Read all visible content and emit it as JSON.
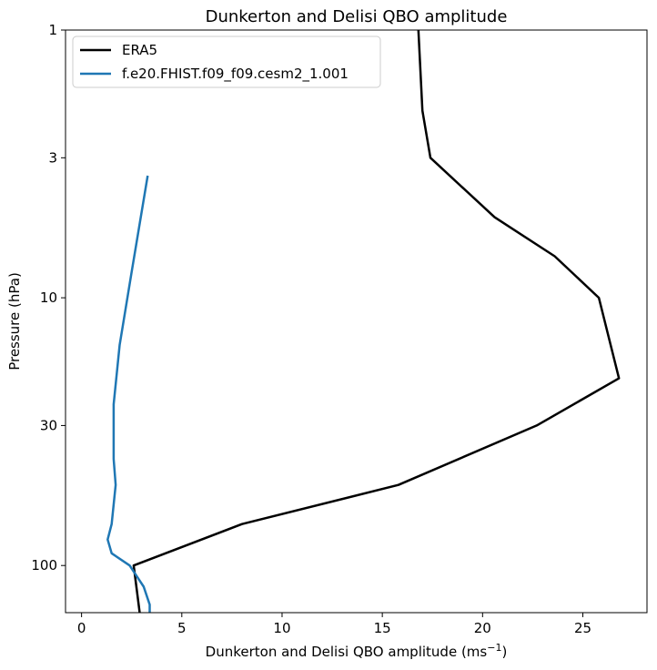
{
  "chart_data": {
    "type": "line",
    "title": "Dunkerton and Delisi QBO amplitude",
    "xlabel": "Dunkerton and Delisi QBO amplitude (ms",
    "xlabel_superscript": "−1",
    "xlabel_suffix": ")",
    "ylabel": "Pressure (hPa)",
    "xlim": [
      -0.8,
      28.2
    ],
    "ylim": [
      150,
      1
    ],
    "yscale": "log",
    "yinverted": true,
    "xticks": [
      0,
      5,
      10,
      15,
      20,
      25
    ],
    "yticks": [
      1,
      3,
      10,
      30,
      100
    ],
    "legend_location": "top-left",
    "grid": false,
    "series": [
      {
        "name": "ERA5",
        "color": "#000000",
        "points": [
          {
            "x": 16.8,
            "y": 1
          },
          {
            "x": 17.0,
            "y": 2
          },
          {
            "x": 17.4,
            "y": 3
          },
          {
            "x": 20.6,
            "y": 5
          },
          {
            "x": 23.6,
            "y": 7
          },
          {
            "x": 25.8,
            "y": 10
          },
          {
            "x": 26.8,
            "y": 20
          },
          {
            "x": 22.7,
            "y": 30
          },
          {
            "x": 15.8,
            "y": 50
          },
          {
            "x": 8.0,
            "y": 70
          },
          {
            "x": 2.6,
            "y": 100
          },
          {
            "x": 2.9,
            "y": 150
          }
        ]
      },
      {
        "name": "f.e20.FHIST.f09_f09.cesm2_1.001",
        "color": "#1f77b4",
        "points": [
          {
            "x": 3.3,
            "y": 3.5
          },
          {
            "x": 2.5,
            "y": 8
          },
          {
            "x": 1.9,
            "y": 15
          },
          {
            "x": 1.6,
            "y": 25
          },
          {
            "x": 1.6,
            "y": 40
          },
          {
            "x": 1.7,
            "y": 50
          },
          {
            "x": 1.5,
            "y": 70
          },
          {
            "x": 1.3,
            "y": 80
          },
          {
            "x": 1.5,
            "y": 90
          },
          {
            "x": 2.4,
            "y": 100
          },
          {
            "x": 3.1,
            "y": 120
          },
          {
            "x": 3.4,
            "y": 140
          },
          {
            "x": 3.4,
            "y": 150
          }
        ]
      }
    ]
  }
}
